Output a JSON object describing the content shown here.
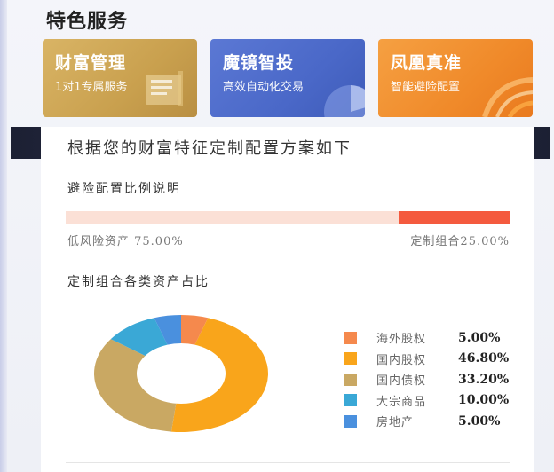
{
  "section_title": "特色服务",
  "cards": [
    {
      "title": "财富管理",
      "subtitle": "1对1专属服务",
      "icon": "book-icon"
    },
    {
      "title": "魔镜智投",
      "subtitle": "高效自动化交易",
      "icon": "pie-chart-icon"
    },
    {
      "title": "凤凰真准",
      "subtitle": "智能避险配置",
      "icon": "arc-swirl-icon"
    }
  ],
  "plan": {
    "heading": "根据您的财富特征定制配置方案如下",
    "ratio_title": "避险配置比例说明",
    "low_risk_label": "低风险资产 75.00%",
    "custom_label": "定制组合25.00%",
    "custom_share": 0.25,
    "alloc_title": "定制组合各类资产占比"
  },
  "chart_data": {
    "type": "pie",
    "categories": [
      "海外股权",
      "国内股权",
      "国内债权",
      "大宗商品",
      "房地产"
    ],
    "values": [
      5.0,
      46.8,
      33.2,
      10.0,
      5.0
    ],
    "labels": [
      "5.00%",
      "46.80%",
      "33.20%",
      "10.00%",
      "5.00%"
    ],
    "colors": [
      "#f5894d",
      "#f9a51b",
      "#c9a863",
      "#3aa8d6",
      "#4a90de"
    ],
    "legend_position": "right"
  }
}
